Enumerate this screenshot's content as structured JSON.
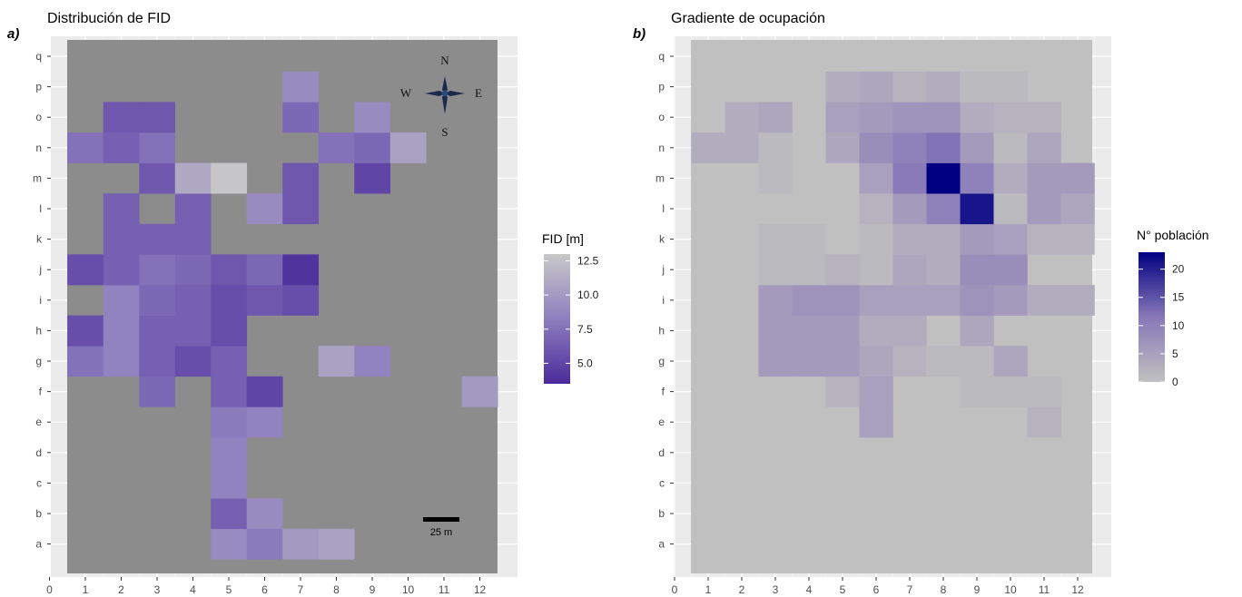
{
  "chart_data": [
    {
      "panel_label": "a)",
      "title": "Distribución de FID",
      "type": "heatmap",
      "x_ticks": [
        "0",
        "1",
        "2",
        "3",
        "4",
        "5",
        "6",
        "7",
        "8",
        "9",
        "10",
        "11",
        "12"
      ],
      "y_ticks": [
        "a",
        "b",
        "c",
        "d",
        "e",
        "f",
        "g",
        "h",
        "i",
        "j",
        "k",
        "l",
        "m",
        "n",
        "o",
        "p",
        "q"
      ],
      "legend_title": "FID [m]",
      "legend_ticks": [
        "12.5",
        "10.0",
        "7.5",
        "5.0"
      ],
      "legend_tick_values": [
        12.5,
        10,
        7.5,
        5
      ],
      "color_range": [
        3.5,
        13
      ],
      "colors": {
        "low": "#4a2a9a",
        "mid": "#8e7fbf",
        "high": "#c8c8c8",
        "na": "#8c8c8c",
        "panel": "#ebebeb"
      },
      "compass": {
        "n": "N",
        "s": "S",
        "e": "E",
        "w": "W"
      },
      "scale_bar_label": "25 m",
      "cells": [
        {
          "x": 5,
          "y": "a",
          "v": 9.0
        },
        {
          "x": 6,
          "y": "a",
          "v": 8.0
        },
        {
          "x": 7,
          "y": "a",
          "v": 10.0
        },
        {
          "x": 8,
          "y": "a",
          "v": 10.5
        },
        {
          "x": 5,
          "y": "b",
          "v": 6.5
        },
        {
          "x": 6,
          "y": "b",
          "v": 9.0
        },
        {
          "x": 5,
          "y": "c",
          "v": 8.5
        },
        {
          "x": 5,
          "y": "d",
          "v": 8.5
        },
        {
          "x": 5,
          "y": "e",
          "v": 8.0
        },
        {
          "x": 6,
          "y": "e",
          "v": 8.5
        },
        {
          "x": 3,
          "y": "f",
          "v": 7.0
        },
        {
          "x": 5,
          "y": "f",
          "v": 6.5
        },
        {
          "x": 6,
          "y": "f",
          "v": 5.0
        },
        {
          "x": 12,
          "y": "f",
          "v": 10.0
        },
        {
          "x": 1,
          "y": "g",
          "v": 7.5
        },
        {
          "x": 2,
          "y": "g",
          "v": 8.5
        },
        {
          "x": 3,
          "y": "g",
          "v": 6.5
        },
        {
          "x": 4,
          "y": "g",
          "v": 5.5
        },
        {
          "x": 5,
          "y": "g",
          "v": 6.5
        },
        {
          "x": 8,
          "y": "g",
          "v": 10.5
        },
        {
          "x": 9,
          "y": "g",
          "v": 8.5
        },
        {
          "x": 1,
          "y": "h",
          "v": 5.5
        },
        {
          "x": 2,
          "y": "h",
          "v": 8.5
        },
        {
          "x": 3,
          "y": "h",
          "v": 6.5
        },
        {
          "x": 4,
          "y": "h",
          "v": 6.5
        },
        {
          "x": 5,
          "y": "h",
          "v": 5.5
        },
        {
          "x": 2,
          "y": "i",
          "v": 8.5
        },
        {
          "x": 3,
          "y": "i",
          "v": 7.0
        },
        {
          "x": 4,
          "y": "i",
          "v": 6.5
        },
        {
          "x": 5,
          "y": "i",
          "v": 5.5
        },
        {
          "x": 6,
          "y": "i",
          "v": 6.0
        },
        {
          "x": 7,
          "y": "i",
          "v": 5.5
        },
        {
          "x": 1,
          "y": "j",
          "v": 5.5
        },
        {
          "x": 2,
          "y": "j",
          "v": 6.5
        },
        {
          "x": 3,
          "y": "j",
          "v": 7.5
        },
        {
          "x": 4,
          "y": "j",
          "v": 7.0
        },
        {
          "x": 5,
          "y": "j",
          "v": 6.0
        },
        {
          "x": 6,
          "y": "j",
          "v": 7.0
        },
        {
          "x": 7,
          "y": "j",
          "v": 4.0
        },
        {
          "x": 2,
          "y": "k",
          "v": 6.5
        },
        {
          "x": 3,
          "y": "k",
          "v": 6.5
        },
        {
          "x": 4,
          "y": "k",
          "v": 6.5
        },
        {
          "x": 2,
          "y": "l",
          "v": 6.5
        },
        {
          "x": 4,
          "y": "l",
          "v": 6.5
        },
        {
          "x": 6,
          "y": "l",
          "v": 9.0
        },
        {
          "x": 7,
          "y": "l",
          "v": 6.0
        },
        {
          "x": 3,
          "y": "m",
          "v": 6.0
        },
        {
          "x": 4,
          "y": "m",
          "v": 11.0
        },
        {
          "x": 5,
          "y": "m",
          "v": 12.8
        },
        {
          "x": 7,
          "y": "m",
          "v": 6.0
        },
        {
          "x": 9,
          "y": "m",
          "v": 5.0
        },
        {
          "x": 1,
          "y": "n",
          "v": 7.5
        },
        {
          "x": 2,
          "y": "n",
          "v": 6.5
        },
        {
          "x": 3,
          "y": "n",
          "v": 7.5
        },
        {
          "x": 8,
          "y": "n",
          "v": 7.5
        },
        {
          "x": 9,
          "y": "n",
          "v": 7.0
        },
        {
          "x": 10,
          "y": "n",
          "v": 10.5
        },
        {
          "x": 2,
          "y": "o",
          "v": 6.0
        },
        {
          "x": 3,
          "y": "o",
          "v": 6.0
        },
        {
          "x": 7,
          "y": "o",
          "v": 7.0
        },
        {
          "x": 9,
          "y": "o",
          "v": 9.0
        },
        {
          "x": 7,
          "y": "p",
          "v": 9.0
        }
      ]
    },
    {
      "panel_label": "b)",
      "title": "Gradiente de ocupación",
      "type": "heatmap",
      "x_ticks": [
        "0",
        "1",
        "2",
        "3",
        "4",
        "5",
        "6",
        "7",
        "8",
        "9",
        "10",
        "11",
        "12"
      ],
      "y_ticks": [
        "a",
        "b",
        "c",
        "d",
        "e",
        "f",
        "g",
        "h",
        "i",
        "j",
        "k",
        "l",
        "m",
        "n",
        "o",
        "p",
        "q"
      ],
      "legend_title": "N° población",
      "legend_ticks": [
        "20",
        "15",
        "10",
        "5",
        "0"
      ],
      "legend_tick_values": [
        20,
        15,
        10,
        5,
        0
      ],
      "color_range": [
        0,
        23
      ],
      "colors": {
        "low": "#c0c0c0",
        "mid": "#8878b8",
        "high": "#000080",
        "panel": "#ebebeb"
      },
      "default_value": 0,
      "cells": [
        {
          "x": 6,
          "y": "e",
          "v": 5
        },
        {
          "x": 11,
          "y": "e",
          "v": 2
        },
        {
          "x": 5,
          "y": "f",
          "v": 2
        },
        {
          "x": 6,
          "y": "f",
          "v": 5
        },
        {
          "x": 9,
          "y": "f",
          "v": 1
        },
        {
          "x": 10,
          "y": "f",
          "v": 1
        },
        {
          "x": 11,
          "y": "f",
          "v": 1
        },
        {
          "x": 3,
          "y": "g",
          "v": 6
        },
        {
          "x": 4,
          "y": "g",
          "v": 6
        },
        {
          "x": 5,
          "y": "g",
          "v": 6
        },
        {
          "x": 6,
          "y": "g",
          "v": 4
        },
        {
          "x": 7,
          "y": "g",
          "v": 2
        },
        {
          "x": 8,
          "y": "g",
          "v": 1
        },
        {
          "x": 9,
          "y": "g",
          "v": 1
        },
        {
          "x": 10,
          "y": "g",
          "v": 4
        },
        {
          "x": 3,
          "y": "h",
          "v": 6
        },
        {
          "x": 4,
          "y": "h",
          "v": 6
        },
        {
          "x": 5,
          "y": "h",
          "v": 6
        },
        {
          "x": 6,
          "y": "h",
          "v": 3
        },
        {
          "x": 7,
          "y": "h",
          "v": 3
        },
        {
          "x": 9,
          "y": "h",
          "v": 4
        },
        {
          "x": 3,
          "y": "i",
          "v": 6
        },
        {
          "x": 4,
          "y": "i",
          "v": 7
        },
        {
          "x": 5,
          "y": "i",
          "v": 7
        },
        {
          "x": 6,
          "y": "i",
          "v": 5
        },
        {
          "x": 7,
          "y": "i",
          "v": 5
        },
        {
          "x": 8,
          "y": "i",
          "v": 5
        },
        {
          "x": 9,
          "y": "i",
          "v": 7
        },
        {
          "x": 10,
          "y": "i",
          "v": 6
        },
        {
          "x": 11,
          "y": "i",
          "v": 3
        },
        {
          "x": 12,
          "y": "i",
          "v": 3
        },
        {
          "x": 3,
          "y": "j",
          "v": 1
        },
        {
          "x": 4,
          "y": "j",
          "v": 1
        },
        {
          "x": 5,
          "y": "j",
          "v": 2
        },
        {
          "x": 6,
          "y": "j",
          "v": 1
        },
        {
          "x": 7,
          "y": "j",
          "v": 4
        },
        {
          "x": 8,
          "y": "j",
          "v": 3
        },
        {
          "x": 9,
          "y": "j",
          "v": 8
        },
        {
          "x": 10,
          "y": "j",
          "v": 8
        },
        {
          "x": 3,
          "y": "k",
          "v": 1
        },
        {
          "x": 4,
          "y": "k",
          "v": 1
        },
        {
          "x": 6,
          "y": "k",
          "v": 1
        },
        {
          "x": 7,
          "y": "k",
          "v": 3
        },
        {
          "x": 8,
          "y": "k",
          "v": 3
        },
        {
          "x": 9,
          "y": "k",
          "v": 6
        },
        {
          "x": 10,
          "y": "k",
          "v": 5
        },
        {
          "x": 11,
          "y": "k",
          "v": 2
        },
        {
          "x": 12,
          "y": "k",
          "v": 2
        },
        {
          "x": 6,
          "y": "l",
          "v": 2
        },
        {
          "x": 7,
          "y": "l",
          "v": 6
        },
        {
          "x": 8,
          "y": "l",
          "v": 10
        },
        {
          "x": 9,
          "y": "l",
          "v": 21
        },
        {
          "x": 10,
          "y": "l",
          "v": 1
        },
        {
          "x": 11,
          "y": "l",
          "v": 6
        },
        {
          "x": 12,
          "y": "l",
          "v": 4
        },
        {
          "x": 3,
          "y": "m",
          "v": 1
        },
        {
          "x": 6,
          "y": "m",
          "v": 5
        },
        {
          "x": 7,
          "y": "m",
          "v": 11
        },
        {
          "x": 8,
          "y": "m",
          "v": 23
        },
        {
          "x": 9,
          "y": "m",
          "v": 10
        },
        {
          "x": 10,
          "y": "m",
          "v": 3
        },
        {
          "x": 11,
          "y": "m",
          "v": 6
        },
        {
          "x": 12,
          "y": "m",
          "v": 6
        },
        {
          "x": 1,
          "y": "n",
          "v": 3
        },
        {
          "x": 2,
          "y": "n",
          "v": 3
        },
        {
          "x": 3,
          "y": "n",
          "v": 1
        },
        {
          "x": 5,
          "y": "n",
          "v": 4
        },
        {
          "x": 6,
          "y": "n",
          "v": 8
        },
        {
          "x": 7,
          "y": "n",
          "v": 10
        },
        {
          "x": 8,
          "y": "n",
          "v": 12
        },
        {
          "x": 9,
          "y": "n",
          "v": 6
        },
        {
          "x": 10,
          "y": "n",
          "v": 1
        },
        {
          "x": 11,
          "y": "n",
          "v": 4
        },
        {
          "x": 2,
          "y": "o",
          "v": 3
        },
        {
          "x": 3,
          "y": "o",
          "v": 4
        },
        {
          "x": 5,
          "y": "o",
          "v": 5
        },
        {
          "x": 6,
          "y": "o",
          "v": 6
        },
        {
          "x": 7,
          "y": "o",
          "v": 7
        },
        {
          "x": 8,
          "y": "o",
          "v": 7
        },
        {
          "x": 9,
          "y": "o",
          "v": 3
        },
        {
          "x": 10,
          "y": "o",
          "v": 2
        },
        {
          "x": 11,
          "y": "o",
          "v": 2
        },
        {
          "x": 5,
          "y": "p",
          "v": 3
        },
        {
          "x": 6,
          "y": "p",
          "v": 4
        },
        {
          "x": 7,
          "y": "p",
          "v": 2
        },
        {
          "x": 8,
          "y": "p",
          "v": 3
        },
        {
          "x": 9,
          "y": "p",
          "v": 1
        },
        {
          "x": 10,
          "y": "p",
          "v": 1
        }
      ]
    }
  ]
}
